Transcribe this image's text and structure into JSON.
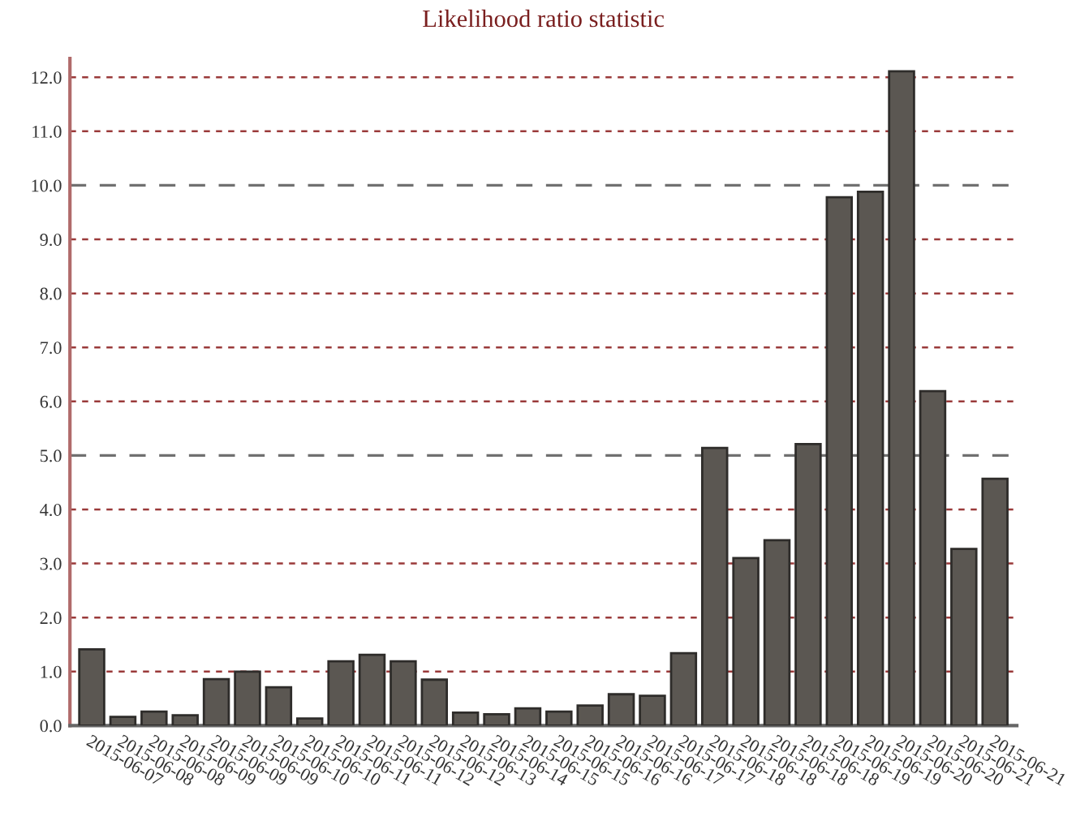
{
  "chart_data": {
    "type": "bar",
    "title": "Likelihood ratio statistic",
    "categories": [
      "2015-06-07",
      "2015-06-08",
      "2015-06-08",
      "2015-06-09",
      "2015-06-09",
      "2015-06-09",
      "2015-06-10",
      "2015-06-10",
      "2015-06-11",
      "2015-06-11",
      "2015-06-12",
      "2015-06-12",
      "2015-06-13",
      "2015-06-14",
      "2015-06-15",
      "2015-06-15",
      "2015-06-16",
      "2015-06-16",
      "2015-06-17",
      "2015-06-17",
      "2015-06-18",
      "2015-06-18",
      "2015-06-18",
      "2015-06-18",
      "2015-06-19",
      "2015-06-19",
      "2015-06-20",
      "2015-06-20",
      "2015-06-21",
      "2015-06-21"
    ],
    "values": [
      1.41,
      0.16,
      0.26,
      0.19,
      0.86,
      1.0,
      0.71,
      0.13,
      1.19,
      1.31,
      1.19,
      0.85,
      0.24,
      0.21,
      0.32,
      0.26,
      0.37,
      0.58,
      0.55,
      1.34,
      5.14,
      3.1,
      3.43,
      5.21,
      9.78,
      9.88,
      12.11,
      6.19,
      3.27,
      4.57
    ],
    "color": "#5b5752",
    "ylim": [
      0,
      12.35
    ],
    "yticks": [
      {
        "value": 0,
        "label": "0.0"
      },
      {
        "value": 1,
        "label": "1.0"
      },
      {
        "value": 2,
        "label": "2.0"
      },
      {
        "value": 3,
        "label": "3.0"
      },
      {
        "value": 4,
        "label": "4.0"
      },
      {
        "value": 5,
        "label": "5.0"
      },
      {
        "value": 6,
        "label": "6.0"
      },
      {
        "value": 7,
        "label": "7.0"
      },
      {
        "value": 8,
        "label": "8.0"
      },
      {
        "value": 9,
        "label": "9.0"
      },
      {
        "value": 10,
        "label": "10.0"
      },
      {
        "value": 11,
        "label": "11.0"
      },
      {
        "value": 12,
        "label": "12.0"
      }
    ],
    "grid": "y"
  }
}
